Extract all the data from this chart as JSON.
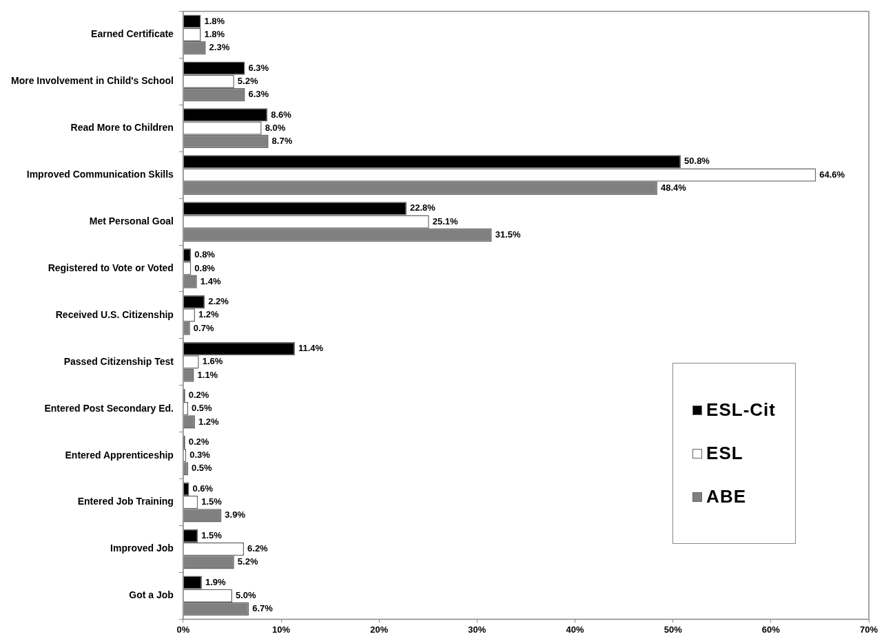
{
  "chart_data": {
    "type": "bar",
    "orientation": "horizontal",
    "categories": [
      "Earned Certificate",
      "More Involvement in Child's School",
      "Read More to Children",
      "Improved Communication Skills",
      "Met Personal Goal",
      "Registered to Vote or Voted",
      "Received U.S. Citizenship",
      "Passed Citizenship Test",
      "Entered Post Secondary Ed.",
      "Entered Apprenticeship",
      "Entered Job Training",
      "Improved Job",
      "Got a Job"
    ],
    "series": [
      {
        "name": "ESL-Cit",
        "color": "#000000",
        "values": [
          1.8,
          6.3,
          8.6,
          50.8,
          22.8,
          0.8,
          2.2,
          11.4,
          0.2,
          0.2,
          0.6,
          1.5,
          1.9
        ],
        "value_labels": [
          "1.8%",
          "6.3%",
          "8.6%",
          "50.8%",
          "22.8%",
          "0.8%",
          "2.2%",
          "11.4%",
          "0.2%",
          "0.2%",
          "0.6%",
          "1.5%",
          "1.9%"
        ]
      },
      {
        "name": "ESL",
        "color": "#ffffff",
        "values": [
          1.8,
          5.2,
          8.0,
          64.6,
          25.1,
          0.8,
          1.2,
          1.6,
          0.5,
          0.3,
          1.5,
          6.2,
          5.0
        ],
        "value_labels": [
          "1.8%",
          "5.2%",
          "8.0%",
          "64.6%",
          "25.1%",
          "0.8%",
          "1.2%",
          "1.6%",
          "0.5%",
          "0.3%",
          "1.5%",
          "6.2%",
          "5.0%"
        ]
      },
      {
        "name": "ABE",
        "color": "#808080",
        "values": [
          2.3,
          6.3,
          8.7,
          48.4,
          31.5,
          1.4,
          0.7,
          1.1,
          1.2,
          0.5,
          3.9,
          5.2,
          6.7
        ],
        "value_labels": [
          "2.3%",
          "6.3%",
          "8.7%",
          "48.4%",
          "31.5%",
          "1.4%",
          "0.7%",
          "1.1%",
          "1.2%",
          "0.5%",
          "3.9%",
          "5.2%",
          "6.7%"
        ]
      }
    ],
    "xlim": [
      0,
      70
    ],
    "xticks": [
      {
        "value": 0,
        "label": "0%"
      },
      {
        "value": 10,
        "label": "10%"
      },
      {
        "value": 20,
        "label": "20%"
      },
      {
        "value": 30,
        "label": "30%"
      },
      {
        "value": 40,
        "label": "40%"
      },
      {
        "value": 50,
        "label": "50%"
      },
      {
        "value": 60,
        "label": "60%"
      },
      {
        "value": 70,
        "label": "70%"
      }
    ],
    "grid": false,
    "legend": "right"
  }
}
